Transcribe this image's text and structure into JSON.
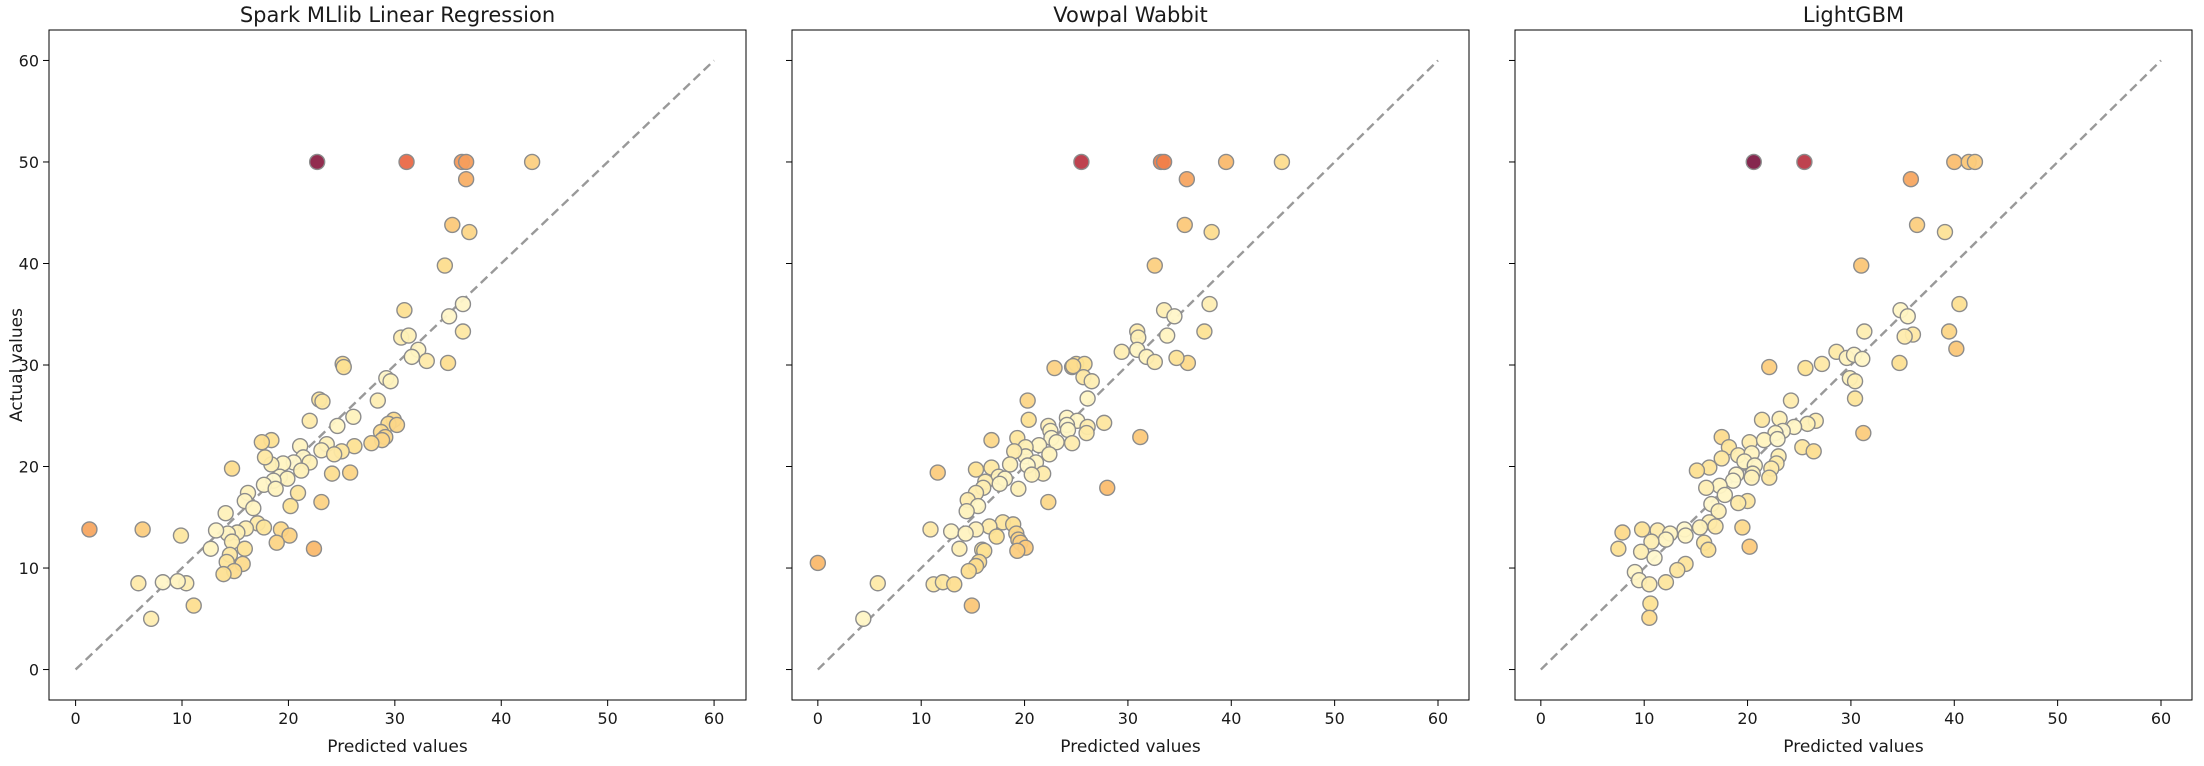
{
  "chart_data": [
    {
      "type": "scatter",
      "title": "Spark MLlib Linear Regression",
      "xlabel": "Predicted values",
      "ylabel": "Actual values",
      "xlim": [
        -2.5,
        63
      ],
      "ylim": [
        -3,
        63
      ],
      "xticks": [
        0,
        10,
        20,
        30,
        40,
        50,
        60
      ],
      "yticks": [
        0,
        10,
        20,
        30,
        40,
        50,
        60
      ],
      "grid": false,
      "reference_line": {
        "from": [
          0,
          0
        ],
        "to": [
          60,
          60
        ],
        "color": "#999999",
        "style": "dashed"
      },
      "points": [
        [
          22.7,
          50.0
        ],
        [
          31.1,
          50.0
        ],
        [
          36.3,
          50.0
        ],
        [
          36.7,
          50.0
        ],
        [
          42.9,
          50.0
        ],
        [
          36.7,
          48.3
        ],
        [
          35.4,
          43.8
        ],
        [
          37.0,
          43.1
        ],
        [
          34.7,
          39.8
        ],
        [
          30.9,
          35.4
        ],
        [
          36.4,
          36.0
        ],
        [
          35.1,
          34.8
        ],
        [
          30.6,
          32.7
        ],
        [
          31.3,
          32.9
        ],
        [
          36.4,
          33.3
        ],
        [
          32.2,
          31.5
        ],
        [
          31.6,
          30.8
        ],
        [
          33.0,
          30.4
        ],
        [
          35.0,
          30.2
        ],
        [
          25.1,
          30.1
        ],
        [
          25.2,
          29.8
        ],
        [
          29.2,
          28.7
        ],
        [
          29.6,
          28.4
        ],
        [
          28.4,
          26.5
        ],
        [
          22.9,
          26.6
        ],
        [
          23.2,
          26.4
        ],
        [
          26.1,
          24.9
        ],
        [
          29.9,
          24.6
        ],
        [
          29.4,
          24.2
        ],
        [
          30.2,
          24.1
        ],
        [
          24.6,
          24.0
        ],
        [
          28.7,
          23.4
        ],
        [
          22.0,
          24.5
        ],
        [
          29.1,
          22.9
        ],
        [
          28.8,
          22.6
        ],
        [
          27.8,
          22.3
        ],
        [
          23.6,
          22.2
        ],
        [
          26.2,
          22.0
        ],
        [
          21.1,
          22.0
        ],
        [
          18.4,
          22.6
        ],
        [
          17.5,
          22.4
        ],
        [
          25.0,
          21.5
        ],
        [
          23.1,
          21.6
        ],
        [
          24.3,
          21.2
        ],
        [
          21.4,
          20.9
        ],
        [
          22.0,
          20.4
        ],
        [
          20.5,
          20.4
        ],
        [
          19.5,
          20.3
        ],
        [
          18.4,
          20.2
        ],
        [
          17.8,
          20.9
        ],
        [
          14.7,
          19.8
        ],
        [
          21.2,
          19.6
        ],
        [
          24.1,
          19.3
        ],
        [
          25.8,
          19.4
        ],
        [
          19.2,
          19.0
        ],
        [
          19.9,
          18.8
        ],
        [
          18.6,
          18.6
        ],
        [
          17.7,
          18.2
        ],
        [
          18.8,
          17.8
        ],
        [
          20.9,
          17.4
        ],
        [
          16.2,
          17.4
        ],
        [
          15.9,
          16.6
        ],
        [
          16.7,
          15.9
        ],
        [
          20.2,
          16.1
        ],
        [
          23.1,
          16.5
        ],
        [
          14.1,
          15.4
        ],
        [
          17.1,
          14.4
        ],
        [
          17.7,
          14.0
        ],
        [
          16.0,
          13.9
        ],
        [
          15.2,
          13.5
        ],
        [
          14.3,
          13.4
        ],
        [
          13.2,
          13.7
        ],
        [
          19.3,
          13.8
        ],
        [
          20.1,
          13.2
        ],
        [
          9.9,
          13.2
        ],
        [
          6.3,
          13.8
        ],
        [
          1.3,
          13.8
        ],
        [
          14.7,
          12.6
        ],
        [
          15.9,
          11.9
        ],
        [
          12.7,
          11.9
        ],
        [
          18.9,
          12.5
        ],
        [
          14.5,
          11.3
        ],
        [
          22.4,
          11.9
        ],
        [
          14.2,
          10.6
        ],
        [
          15.7,
          10.4
        ],
        [
          14.9,
          9.7
        ],
        [
          13.9,
          9.4
        ],
        [
          8.2,
          8.6
        ],
        [
          10.4,
          8.5
        ],
        [
          5.9,
          8.5
        ],
        [
          9.6,
          8.7
        ],
        [
          11.1,
          6.3
        ],
        [
          7.1,
          5.0
        ]
      ]
    },
    {
      "type": "scatter",
      "title": "Vowpal Wabbit",
      "xlabel": "Predicted values",
      "ylabel": "",
      "xlim": [
        -2.5,
        63
      ],
      "ylim": [
        -3,
        63
      ],
      "xticks": [
        0,
        10,
        20,
        30,
        40,
        50,
        60
      ],
      "yticks": [
        0,
        10,
        20,
        30,
        40,
        50,
        60
      ],
      "grid": false,
      "reference_line": {
        "from": [
          0,
          0
        ],
        "to": [
          60,
          60
        ],
        "color": "#999999",
        "style": "dashed"
      },
      "points": [
        [
          25.5,
          50.0
        ],
        [
          33.2,
          50.0
        ],
        [
          33.5,
          50.0
        ],
        [
          39.5,
          50.0
        ],
        [
          44.9,
          50.0
        ],
        [
          35.7,
          48.3
        ],
        [
          35.5,
          43.8
        ],
        [
          38.1,
          43.1
        ],
        [
          32.6,
          39.8
        ],
        [
          33.5,
          35.4
        ],
        [
          37.9,
          36.0
        ],
        [
          34.5,
          34.8
        ],
        [
          30.9,
          33.3
        ],
        [
          31.0,
          32.7
        ],
        [
          33.8,
          32.9
        ],
        [
          37.4,
          33.3
        ],
        [
          30.9,
          31.5
        ],
        [
          31.8,
          30.8
        ],
        [
          29.4,
          31.3
        ],
        [
          35.8,
          30.2
        ],
        [
          32.6,
          30.3
        ],
        [
          34.7,
          30.7
        ],
        [
          22.9,
          29.7
        ],
        [
          24.6,
          29.8
        ],
        [
          25.0,
          30.1
        ],
        [
          25.8,
          30.1
        ],
        [
          24.7,
          29.9
        ],
        [
          25.7,
          28.8
        ],
        [
          26.5,
          28.4
        ],
        [
          26.1,
          26.7
        ],
        [
          20.3,
          26.5
        ],
        [
          27.7,
          24.3
        ],
        [
          24.1,
          24.8
        ],
        [
          25.1,
          24.5
        ],
        [
          24.1,
          24.1
        ],
        [
          26.1,
          23.9
        ],
        [
          31.2,
          22.9
        ],
        [
          20.4,
          24.6
        ],
        [
          22.3,
          24.0
        ],
        [
          22.5,
          23.5
        ],
        [
          24.2,
          23.6
        ],
        [
          26.0,
          23.3
        ],
        [
          19.3,
          22.8
        ],
        [
          16.8,
          22.6
        ],
        [
          22.6,
          22.8
        ],
        [
          23.1,
          22.4
        ],
        [
          24.6,
          22.3
        ],
        [
          21.4,
          22.1
        ],
        [
          20.1,
          21.9
        ],
        [
          20.1,
          21.0
        ],
        [
          22.4,
          21.2
        ],
        [
          19.0,
          21.5
        ],
        [
          21.1,
          20.4
        ],
        [
          20.3,
          20.1
        ],
        [
          18.6,
          20.2
        ],
        [
          16.8,
          19.9
        ],
        [
          15.3,
          19.7
        ],
        [
          11.6,
          19.4
        ],
        [
          21.8,
          19.3
        ],
        [
          20.7,
          19.2
        ],
        [
          17.5,
          19.0
        ],
        [
          18.1,
          18.8
        ],
        [
          16.2,
          18.5
        ],
        [
          17.6,
          18.3
        ],
        [
          16.0,
          17.9
        ],
        [
          28.0,
          17.9
        ],
        [
          15.3,
          17.4
        ],
        [
          19.4,
          17.8
        ],
        [
          14.5,
          16.7
        ],
        [
          22.3,
          16.5
        ],
        [
          15.5,
          16.1
        ],
        [
          14.4,
          15.6
        ],
        [
          17.9,
          14.5
        ],
        [
          18.9,
          14.3
        ],
        [
          16.6,
          14.1
        ],
        [
          15.3,
          13.8
        ],
        [
          10.9,
          13.8
        ],
        [
          12.9,
          13.6
        ],
        [
          14.3,
          13.4
        ],
        [
          17.3,
          13.1
        ],
        [
          19.2,
          13.4
        ],
        [
          19.4,
          12.8
        ],
        [
          19.6,
          12.5
        ],
        [
          20.1,
          12.0
        ],
        [
          19.3,
          11.7
        ],
        [
          13.7,
          11.9
        ],
        [
          15.9,
          11.8
        ],
        [
          16.1,
          11.7
        ],
        [
          15.6,
          10.6
        ],
        [
          15.3,
          10.2
        ],
        [
          14.6,
          9.7
        ],
        [
          11.2,
          8.4
        ],
        [
          12.1,
          8.6
        ],
        [
          13.2,
          8.4
        ],
        [
          0.0,
          10.5
        ],
        [
          5.8,
          8.5
        ],
        [
          4.4,
          5.0
        ],
        [
          14.9,
          6.3
        ]
      ]
    },
    {
      "type": "scatter",
      "title": "LightGBM",
      "xlabel": "Predicted values",
      "ylabel": "",
      "xlim": [
        -2.5,
        63
      ],
      "ylim": [
        -3,
        63
      ],
      "xticks": [
        0,
        10,
        20,
        30,
        40,
        50,
        60
      ],
      "yticks": [
        0,
        10,
        20,
        30,
        40,
        50,
        60
      ],
      "grid": false,
      "reference_line": {
        "from": [
          0,
          0
        ],
        "to": [
          60,
          60
        ],
        "color": "#999999",
        "style": "dashed"
      },
      "points": [
        [
          20.6,
          50.0
        ],
        [
          25.5,
          50.0
        ],
        [
          40.0,
          50.0
        ],
        [
          41.4,
          50.0
        ],
        [
          42.0,
          50.0
        ],
        [
          35.8,
          48.3
        ],
        [
          36.4,
          43.8
        ],
        [
          39.1,
          43.1
        ],
        [
          31.0,
          39.8
        ],
        [
          34.8,
          35.4
        ],
        [
          40.5,
          36.0
        ],
        [
          35.5,
          34.8
        ],
        [
          36.0,
          33.0
        ],
        [
          35.2,
          32.8
        ],
        [
          39.5,
          33.3
        ],
        [
          31.3,
          33.3
        ],
        [
          40.2,
          31.6
        ],
        [
          28.6,
          31.3
        ],
        [
          29.6,
          30.7
        ],
        [
          30.3,
          31.0
        ],
        [
          31.1,
          30.6
        ],
        [
          34.7,
          30.2
        ],
        [
          27.2,
          30.1
        ],
        [
          22.1,
          29.8
        ],
        [
          25.6,
          29.7
        ],
        [
          29.9,
          28.7
        ],
        [
          30.4,
          28.4
        ],
        [
          24.2,
          26.5
        ],
        [
          30.4,
          26.7
        ],
        [
          26.6,
          24.5
        ],
        [
          21.4,
          24.6
        ],
        [
          23.1,
          24.7
        ],
        [
          25.8,
          24.2
        ],
        [
          24.5,
          23.9
        ],
        [
          23.4,
          23.5
        ],
        [
          22.7,
          23.3
        ],
        [
          31.2,
          23.3
        ],
        [
          17.5,
          22.9
        ],
        [
          20.2,
          22.4
        ],
        [
          21.6,
          22.6
        ],
        [
          22.9,
          22.7
        ],
        [
          25.3,
          21.9
        ],
        [
          26.4,
          21.5
        ],
        [
          23.0,
          21.0
        ],
        [
          18.2,
          21.9
        ],
        [
          19.1,
          21.1
        ],
        [
          20.4,
          21.3
        ],
        [
          17.5,
          20.8
        ],
        [
          19.7,
          20.5
        ],
        [
          20.7,
          20.1
        ],
        [
          22.8,
          20.3
        ],
        [
          22.3,
          19.8
        ],
        [
          16.3,
          19.9
        ],
        [
          15.1,
          19.6
        ],
        [
          20.5,
          19.3
        ],
        [
          18.9,
          19.2
        ],
        [
          18.6,
          18.6
        ],
        [
          20.4,
          18.9
        ],
        [
          22.1,
          18.9
        ],
        [
          17.3,
          18.1
        ],
        [
          16.0,
          17.9
        ],
        [
          17.8,
          17.2
        ],
        [
          20.0,
          16.6
        ],
        [
          19.1,
          16.4
        ],
        [
          16.5,
          16.3
        ],
        [
          17.2,
          15.6
        ],
        [
          16.3,
          14.5
        ],
        [
          16.9,
          14.1
        ],
        [
          15.4,
          14.0
        ],
        [
          13.9,
          13.8
        ],
        [
          9.8,
          13.8
        ],
        [
          7.9,
          13.5
        ],
        [
          11.3,
          13.7
        ],
        [
          12.5,
          13.4
        ],
        [
          14.0,
          13.2
        ],
        [
          12.1,
          12.8
        ],
        [
          10.7,
          12.6
        ],
        [
          7.5,
          11.9
        ],
        [
          15.8,
          12.5
        ],
        [
          19.5,
          14.0
        ],
        [
          20.2,
          12.1
        ],
        [
          16.2,
          11.8
        ],
        [
          9.7,
          11.6
        ],
        [
          11.0,
          11.0
        ],
        [
          14.0,
          10.4
        ],
        [
          13.2,
          9.8
        ],
        [
          9.1,
          9.6
        ],
        [
          12.1,
          8.6
        ],
        [
          9.5,
          8.8
        ],
        [
          10.5,
          8.4
        ],
        [
          10.6,
          6.5
        ],
        [
          10.5,
          5.1
        ]
      ]
    }
  ]
}
